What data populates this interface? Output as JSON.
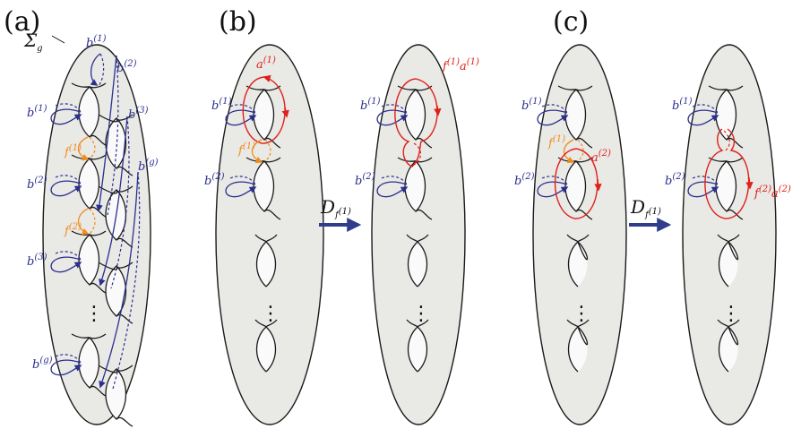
{
  "panels": {
    "a": "(a)",
    "b": "(b)",
    "c": "(c)"
  },
  "surface_label": "Σ",
  "surface_sub": "g",
  "labels": {
    "b1": "b",
    "b1_sup": "(1)",
    "b2": "b",
    "b2_sup": "(2)",
    "b3": "b",
    "b3_sup": "(3)",
    "bg": "b",
    "bg_sup": "(g)",
    "f1": "f",
    "f1_sup": "(1)",
    "f2": "f",
    "f2_sup": "(2)",
    "a1": "a",
    "a1_sup": "(1)",
    "a2": "a",
    "a2_sup": "(2)"
  },
  "transforms": {
    "b_label": "D",
    "b_sub": "f",
    "b_subsup": "(1)",
    "b_result": "f",
    "b_result_sup": "(1)",
    "b_result_a": "a",
    "b_result_a_sup": "(1)",
    "c_label": "D",
    "c_sub": "f",
    "c_subsup": "(1)",
    "c_result": "f",
    "c_result_sup": "(2)",
    "c_result_a": "a",
    "c_result_a_sup": "(2)"
  },
  "colors": {
    "surface": "#e9e9e6",
    "blue": "#2b2f8f",
    "orange": "#f08c1c",
    "red": "#e0201a"
  },
  "ellipsis": "⋮"
}
